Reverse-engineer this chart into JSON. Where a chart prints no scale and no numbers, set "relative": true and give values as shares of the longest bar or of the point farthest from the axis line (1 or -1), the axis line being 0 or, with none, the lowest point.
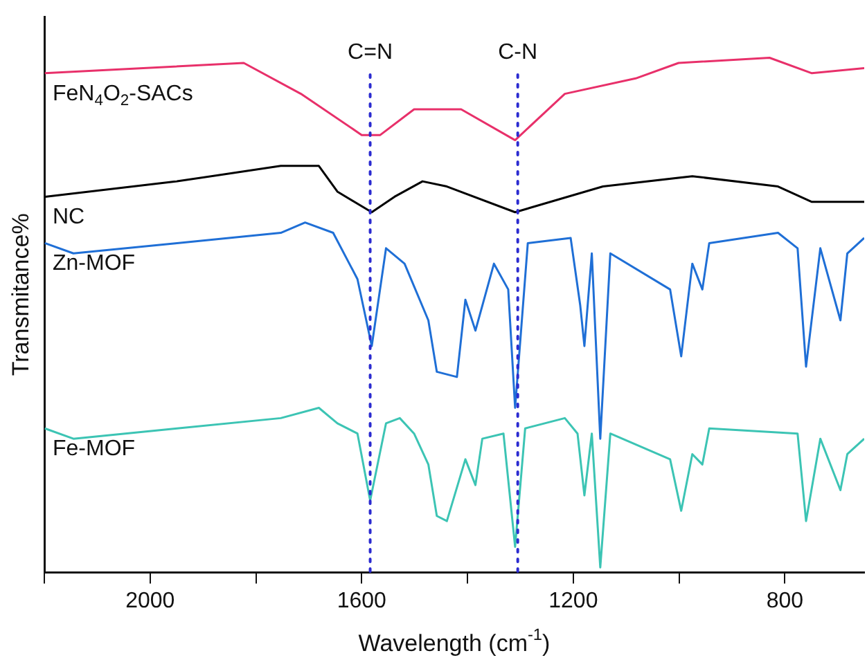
{
  "chart_data": {
    "type": "line",
    "xlabel": "Wavelength (cm$^{-1}$)",
    "ylabel": "Transmitance%",
    "relative": true,
    "legend": false,
    "grid": false,
    "marker": "none",
    "xlim": [
      2200,
      650
    ],
    "xticks": [
      {
        "value": 2200,
        "label": null
      },
      2000,
      {
        "value": 1800,
        "label": null
      },
      1600,
      {
        "value": 1400,
        "label": null
      },
      1200,
      {
        "value": 1000,
        "label": null
      },
      800
    ],
    "ref_lines": [
      {
        "axis": "x",
        "value": 1584,
        "label": "C=N",
        "color": "#2b2bd0",
        "line_style": "dotted"
      },
      {
        "axis": "x",
        "value": 1305,
        "label": "C-N",
        "color": "#2b2bd0",
        "line_style": "dotted"
      }
    ],
    "series": [
      {
        "name": "FeN$_{4}$O$_{2}$-SACs",
        "color": "#e8306a",
        "x": [
          2199,
          1823,
          1715,
          1600,
          1565,
          1501,
          1412,
          1310,
          1216,
          1082,
          1001,
          829,
          749,
          650
        ],
        "values": [
          0.97,
          0.99,
          0.93,
          0.85,
          0.85,
          0.9,
          0.9,
          0.84,
          0.93,
          0.96,
          0.99,
          1.0,
          0.97,
          0.98
        ]
      },
      {
        "name": "NC",
        "color": "#000000",
        "x": [
          2199,
          1949,
          1753,
          1681,
          1646,
          1581,
          1538,
          1485,
          1439,
          1310,
          1144,
          975,
          813,
          749,
          650
        ],
        "values": [
          0.73,
          0.76,
          0.79,
          0.79,
          0.74,
          0.7,
          0.73,
          0.76,
          0.75,
          0.7,
          0.75,
          0.77,
          0.75,
          0.72,
          0.72
        ]
      },
      {
        "name": "Zn-MOF",
        "color": "#1f6fd6",
        "x": [
          2199,
          2145,
          1949,
          1753,
          1707,
          1654,
          1608,
          1581,
          1554,
          1519,
          1474,
          1458,
          1420,
          1404,
          1385,
          1350,
          1323,
          1310,
          1286,
          1205,
          1187,
          1179,
          1165,
          1149,
          1130,
          1017,
          996,
          975,
          956,
          943,
          813,
          776,
          760,
          733,
          695,
          682,
          650
        ],
        "values": [
          0.64,
          0.62,
          0.64,
          0.66,
          0.68,
          0.66,
          0.57,
          0.44,
          0.63,
          0.6,
          0.49,
          0.39,
          0.38,
          0.53,
          0.47,
          0.6,
          0.55,
          0.32,
          0.64,
          0.65,
          0.52,
          0.44,
          0.62,
          0.26,
          0.62,
          0.55,
          0.42,
          0.6,
          0.55,
          0.64,
          0.66,
          0.63,
          0.4,
          0.63,
          0.49,
          0.62,
          0.65
        ]
      },
      {
        "name": "Fe-MOF",
        "color": "#3cc4b4",
        "x": [
          2199,
          2145,
          1949,
          1753,
          1681,
          1646,
          1608,
          1584,
          1554,
          1528,
          1501,
          1474,
          1458,
          1439,
          1404,
          1385,
          1372,
          1332,
          1310,
          1291,
          1216,
          1192,
          1179,
          1165,
          1149,
          1130,
          1017,
          996,
          975,
          956,
          943,
          776,
          760,
          733,
          695,
          682,
          650
        ],
        "values": [
          0.28,
          0.26,
          0.28,
          0.3,
          0.32,
          0.29,
          0.27,
          0.14,
          0.29,
          0.3,
          0.27,
          0.21,
          0.11,
          0.1,
          0.22,
          0.17,
          0.26,
          0.27,
          0.05,
          0.28,
          0.3,
          0.27,
          0.15,
          0.27,
          0.01,
          0.27,
          0.22,
          0.12,
          0.23,
          0.21,
          0.28,
          0.27,
          0.1,
          0.26,
          0.16,
          0.23,
          0.26
        ]
      }
    ]
  }
}
